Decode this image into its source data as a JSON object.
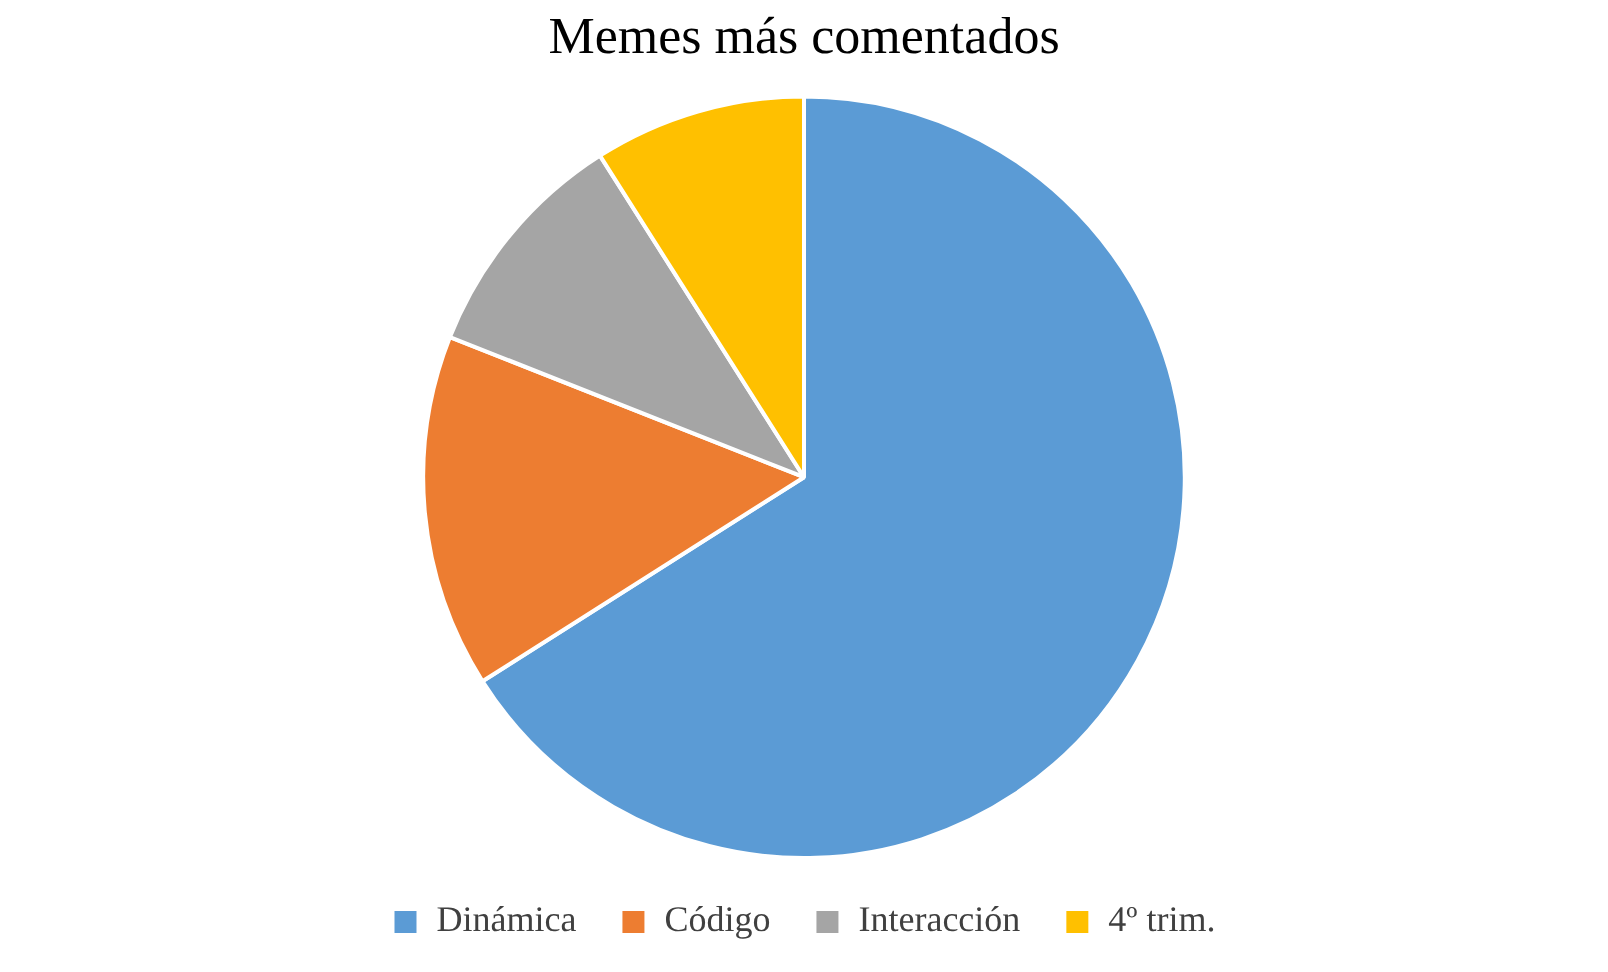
{
  "chart_data": {
    "type": "pie",
    "title": "Memes más comentados",
    "categories": [
      "Dinámica",
      "Código",
      "Interacción",
      "4º trim."
    ],
    "values": [
      66,
      15,
      10,
      9
    ],
    "colors": [
      "#5b9bd5",
      "#ed7d31",
      "#a5a5a5",
      "#ffc000"
    ],
    "legend": "bottom"
  }
}
